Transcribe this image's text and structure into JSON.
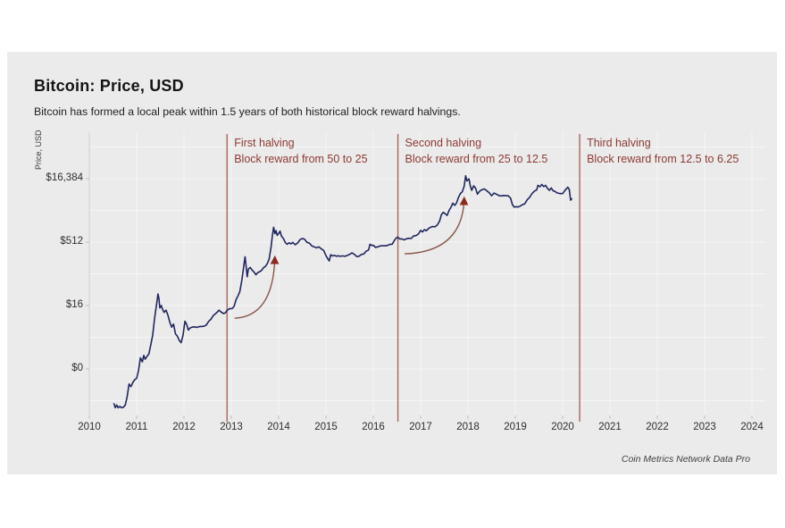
{
  "header": {
    "title": "Bitcoin: Price, USD",
    "subtitle": "Bitcoin has formed a local peak within 1.5 years of both historical block reward halvings."
  },
  "source": "Coin Metrics Network Data Pro",
  "colors": {
    "card_bg": "#ebebeb",
    "grid": "#f6f6f6",
    "axis": "#cfcfcf",
    "tick": "#c2c2c2",
    "price_line": "#20265f",
    "halving_line": "#a55d4b",
    "halving_text": "#8c3a33",
    "arrow_stroke": "#8a5748",
    "arrow_head": "#8e2a1c"
  },
  "chart_data": {
    "type": "line",
    "title": "Bitcoin: Price, USD",
    "xlabel": "",
    "ylabel": "Price, USD",
    "y_scale": "log2",
    "x_range": [
      2010,
      2024.3
    ],
    "grid": true,
    "y_ticks": [
      {
        "label": "$16,384",
        "value": 16384
      },
      {
        "label": "$512",
        "value": 512
      },
      {
        "label": "$16",
        "value": 16
      },
      {
        "label": "$0",
        "value": 0.5
      }
    ],
    "x_ticks": [
      "2010",
      "2011",
      "2012",
      "2013",
      "2014",
      "2015",
      "2016",
      "2017",
      "2018",
      "2019",
      "2020",
      "2021",
      "2022",
      "2023",
      "2024"
    ],
    "halvings": [
      {
        "name": "First halving",
        "detail": "Block reward from 50 to 25",
        "year": 2012.91
      },
      {
        "name": "Second halving",
        "detail": "Block reward from 25 to 12.5",
        "year": 2016.52
      },
      {
        "name": "Third halving",
        "detail": "Block reward from 12.5 to 6.25",
        "year": 2020.36
      }
    ],
    "arrows": [
      {
        "from": [
          2013.07,
          8
        ],
        "to": [
          2013.92,
          215
        ]
      },
      {
        "from": [
          2016.66,
          270
        ],
        "to": [
          2017.92,
          5400
        ]
      }
    ],
    "series": [
      {
        "name": "BTC price, USD",
        "points": [
          [
            2010.52,
            0.075
          ],
          [
            2010.55,
            0.06
          ],
          [
            2010.58,
            0.07
          ],
          [
            2010.61,
            0.06
          ],
          [
            2010.645,
            0.065
          ],
          [
            2010.68,
            0.06
          ],
          [
            2010.72,
            0.062
          ],
          [
            2010.76,
            0.07
          ],
          [
            2010.8,
            0.11
          ],
          [
            2010.84,
            0.22
          ],
          [
            2010.88,
            0.19
          ],
          [
            2010.92,
            0.24
          ],
          [
            2010.96,
            0.28
          ],
          [
            2011.0,
            0.3
          ],
          [
            2011.04,
            0.46
          ],
          [
            2011.08,
            0.92
          ],
          [
            2011.12,
            0.74
          ],
          [
            2011.15,
            1.05
          ],
          [
            2011.18,
            0.85
          ],
          [
            2011.22,
            1.0
          ],
          [
            2011.26,
            1.15
          ],
          [
            2011.3,
            1.9
          ],
          [
            2011.34,
            3.2
          ],
          [
            2011.38,
            8.0
          ],
          [
            2011.42,
            17
          ],
          [
            2011.45,
            30
          ],
          [
            2011.47,
            24
          ],
          [
            2011.49,
            14
          ],
          [
            2011.52,
            16
          ],
          [
            2011.55,
            13
          ],
          [
            2011.58,
            11
          ],
          [
            2011.62,
            12.5
          ],
          [
            2011.66,
            9.5
          ],
          [
            2011.7,
            6.5
          ],
          [
            2011.74,
            4.9
          ],
          [
            2011.78,
            5.8
          ],
          [
            2011.82,
            3.4
          ],
          [
            2011.86,
            3.0
          ],
          [
            2011.9,
            2.4
          ],
          [
            2011.94,
            2.1
          ],
          [
            2011.98,
            3.1
          ],
          [
            2012.02,
            6.8
          ],
          [
            2012.06,
            5.6
          ],
          [
            2012.09,
            4.2
          ],
          [
            2012.13,
            4.7
          ],
          [
            2012.17,
            4.9
          ],
          [
            2012.22,
            5.0
          ],
          [
            2012.27,
            4.85
          ],
          [
            2012.32,
            5.05
          ],
          [
            2012.37,
            5.1
          ],
          [
            2012.42,
            5.15
          ],
          [
            2012.47,
            5.5
          ],
          [
            2012.52,
            6.7
          ],
          [
            2012.57,
            7.6
          ],
          [
            2012.62,
            9.3
          ],
          [
            2012.66,
            10.1
          ],
          [
            2012.7,
            11.1
          ],
          [
            2012.74,
            12.4
          ],
          [
            2012.79,
            11.1
          ],
          [
            2012.84,
            10.3
          ],
          [
            2012.88,
            10.9
          ],
          [
            2012.91,
            12.3
          ],
          [
            2012.96,
            13.4
          ],
          [
            2013.02,
            13.6
          ],
          [
            2013.06,
            15.5
          ],
          [
            2013.1,
            22
          ],
          [
            2013.14,
            27
          ],
          [
            2013.18,
            34
          ],
          [
            2013.22,
            62
          ],
          [
            2013.26,
            130
          ],
          [
            2013.29,
            230
          ],
          [
            2013.31,
            150
          ],
          [
            2013.335,
            77
          ],
          [
            2013.36,
            118
          ],
          [
            2013.4,
            128
          ],
          [
            2013.44,
            111
          ],
          [
            2013.48,
            100
          ],
          [
            2013.52,
            86
          ],
          [
            2013.56,
            97
          ],
          [
            2013.6,
            102
          ],
          [
            2013.64,
            109
          ],
          [
            2013.68,
            126
          ],
          [
            2013.72,
            136
          ],
          [
            2013.76,
            158
          ],
          [
            2013.8,
            205
          ],
          [
            2013.84,
            390
          ],
          [
            2013.87,
            760
          ],
          [
            2013.895,
            1150
          ],
          [
            2013.92,
            810
          ],
          [
            2013.945,
            960
          ],
          [
            2013.97,
            740
          ],
          [
            2014.0,
            815
          ],
          [
            2014.03,
            935
          ],
          [
            2014.06,
            705
          ],
          [
            2014.1,
            625
          ],
          [
            2014.14,
            505
          ],
          [
            2014.18,
            455
          ],
          [
            2014.22,
            495
          ],
          [
            2014.26,
            465
          ],
          [
            2014.3,
            505
          ],
          [
            2014.35,
            445
          ],
          [
            2014.4,
            485
          ],
          [
            2014.45,
            585
          ],
          [
            2014.5,
            625
          ],
          [
            2014.55,
            595
          ],
          [
            2014.6,
            505
          ],
          [
            2014.65,
            485
          ],
          [
            2014.7,
            415
          ],
          [
            2014.75,
            395
          ],
          [
            2014.8,
            375
          ],
          [
            2014.85,
            395
          ],
          [
            2014.9,
            355
          ],
          [
            2014.95,
            325
          ],
          [
            2015.0,
            245
          ],
          [
            2015.04,
            205
          ],
          [
            2015.07,
            183
          ],
          [
            2015.1,
            257
          ],
          [
            2015.14,
            242
          ],
          [
            2015.18,
            247
          ],
          [
            2015.22,
            237
          ],
          [
            2015.26,
            243
          ],
          [
            2015.3,
            236
          ],
          [
            2015.35,
            241
          ],
          [
            2015.4,
            236
          ],
          [
            2015.45,
            247
          ],
          [
            2015.5,
            262
          ],
          [
            2015.55,
            283
          ],
          [
            2015.6,
            262
          ],
          [
            2015.65,
            232
          ],
          [
            2015.7,
            237
          ],
          [
            2015.75,
            262
          ],
          [
            2015.8,
            267
          ],
          [
            2015.85,
            312
          ],
          [
            2015.9,
            333
          ],
          [
            2015.93,
            455
          ],
          [
            2015.97,
            425
          ],
          [
            2016.0,
            432
          ],
          [
            2016.05,
            382
          ],
          [
            2016.1,
            397
          ],
          [
            2016.15,
            417
          ],
          [
            2016.2,
            422
          ],
          [
            2016.25,
            417
          ],
          [
            2016.3,
            427
          ],
          [
            2016.35,
            452
          ],
          [
            2016.4,
            457
          ],
          [
            2016.45,
            575
          ],
          [
            2016.5,
            665
          ],
          [
            2016.53,
            655
          ],
          [
            2016.56,
            605
          ],
          [
            2016.6,
            612
          ],
          [
            2016.65,
            578
          ],
          [
            2016.7,
            612
          ],
          [
            2016.75,
            632
          ],
          [
            2016.8,
            622
          ],
          [
            2016.85,
            712
          ],
          [
            2016.9,
            732
          ],
          [
            2016.95,
            792
          ],
          [
            2017.0,
            972
          ],
          [
            2017.04,
            892
          ],
          [
            2017.08,
            1012
          ],
          [
            2017.12,
            952
          ],
          [
            2017.16,
            1062
          ],
          [
            2017.2,
            1132
          ],
          [
            2017.25,
            1202
          ],
          [
            2017.3,
            1182
          ],
          [
            2017.35,
            1292
          ],
          [
            2017.4,
            1602
          ],
          [
            2017.44,
            2302
          ],
          [
            2017.48,
            2602
          ],
          [
            2017.52,
            2402
          ],
          [
            2017.56,
            2202
          ],
          [
            2017.6,
            2902
          ],
          [
            2017.64,
            3402
          ],
          [
            2017.68,
            4302
          ],
          [
            2017.72,
            3802
          ],
          [
            2017.76,
            4402
          ],
          [
            2017.8,
            5902
          ],
          [
            2017.84,
            7302
          ],
          [
            2017.88,
            8002
          ],
          [
            2017.92,
            11002
          ],
          [
            2017.95,
            19200
          ],
          [
            2017.98,
            14500
          ],
          [
            2018.02,
            16200
          ],
          [
            2018.05,
            11100
          ],
          [
            2018.08,
            8700
          ],
          [
            2018.12,
            11100
          ],
          [
            2018.16,
            9800
          ],
          [
            2018.2,
            7050
          ],
          [
            2018.25,
            8350
          ],
          [
            2018.3,
            9050
          ],
          [
            2018.35,
            9350
          ],
          [
            2018.4,
            8450
          ],
          [
            2018.45,
            7550
          ],
          [
            2018.5,
            6450
          ],
          [
            2018.55,
            7450
          ],
          [
            2018.6,
            7050
          ],
          [
            2018.65,
            6550
          ],
          [
            2018.7,
            6350
          ],
          [
            2018.75,
            6550
          ],
          [
            2018.8,
            6450
          ],
          [
            2018.85,
            6480
          ],
          [
            2018.9,
            5650
          ],
          [
            2018.94,
            3950
          ],
          [
            2018.98,
            3450
          ],
          [
            2019.02,
            3550
          ],
          [
            2019.06,
            3480
          ],
          [
            2019.1,
            3650
          ],
          [
            2019.15,
            3950
          ],
          [
            2019.2,
            4150
          ],
          [
            2019.25,
            5150
          ],
          [
            2019.3,
            5850
          ],
          [
            2019.35,
            7150
          ],
          [
            2019.4,
            8250
          ],
          [
            2019.45,
            8850
          ],
          [
            2019.48,
            11350
          ],
          [
            2019.52,
            10550
          ],
          [
            2019.56,
            11950
          ],
          [
            2019.6,
            10650
          ],
          [
            2019.64,
            11350
          ],
          [
            2019.68,
            9650
          ],
          [
            2019.72,
            8650
          ],
          [
            2019.76,
            9850
          ],
          [
            2019.8,
            8450
          ],
          [
            2019.84,
            8150
          ],
          [
            2019.88,
            7550
          ],
          [
            2019.92,
            7350
          ],
          [
            2019.96,
            7250
          ],
          [
            2020.0,
            7250
          ],
          [
            2020.04,
            8350
          ],
          [
            2020.08,
            9450
          ],
          [
            2020.11,
            10250
          ],
          [
            2020.14,
            9150
          ],
          [
            2020.17,
            5050
          ],
          [
            2020.19,
            5450
          ]
        ]
      }
    ]
  }
}
